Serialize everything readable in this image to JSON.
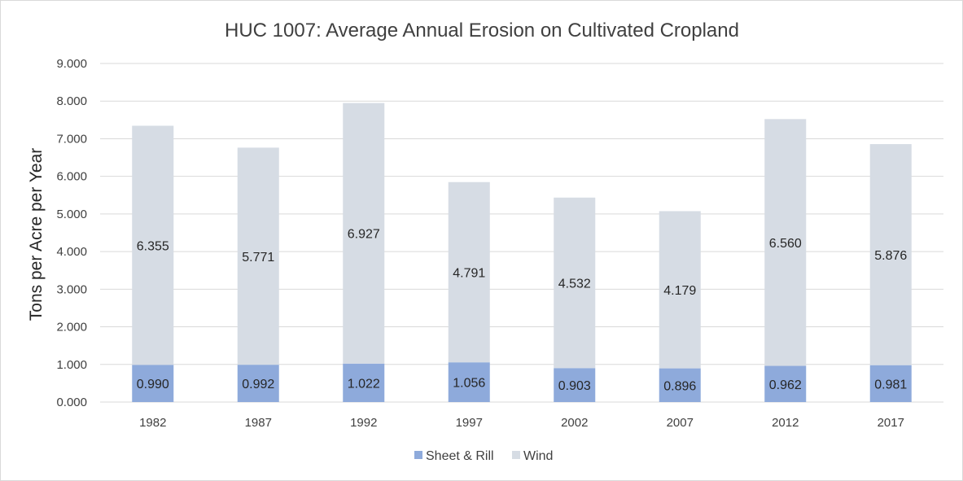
{
  "chart_data": {
    "type": "bar",
    "stacked": true,
    "title": "HUC 1007: Average Annual Erosion on Cultivated Cropland",
    "xlabel": "",
    "ylabel": "Tons per Acre per Year",
    "categories": [
      "1982",
      "1987",
      "1992",
      "1997",
      "2002",
      "2007",
      "2012",
      "2017"
    ],
    "series": [
      {
        "name": "Sheet & Rill",
        "color": "#8eaadb",
        "values": [
          0.99,
          0.992,
          1.022,
          1.056,
          0.903,
          0.896,
          0.962,
          0.981
        ],
        "labels": [
          "0.990",
          "0.992",
          "1.022",
          "1.056",
          "0.903",
          "0.896",
          "0.962",
          "0.981"
        ]
      },
      {
        "name": "Wind",
        "color": "#d6dce4",
        "values": [
          6.355,
          5.771,
          6.927,
          4.791,
          4.532,
          4.179,
          6.56,
          5.876
        ],
        "labels": [
          "6.355",
          "5.771",
          "6.927",
          "4.791",
          "4.532",
          "4.179",
          "6.560",
          "5.876"
        ]
      }
    ],
    "ylim": [
      0,
      9
    ],
    "yticks": [
      "0.000",
      "1.000",
      "2.000",
      "3.000",
      "4.000",
      "5.000",
      "6.000",
      "7.000",
      "8.000",
      "9.000"
    ],
    "grid": true,
    "legend_position": "bottom"
  }
}
